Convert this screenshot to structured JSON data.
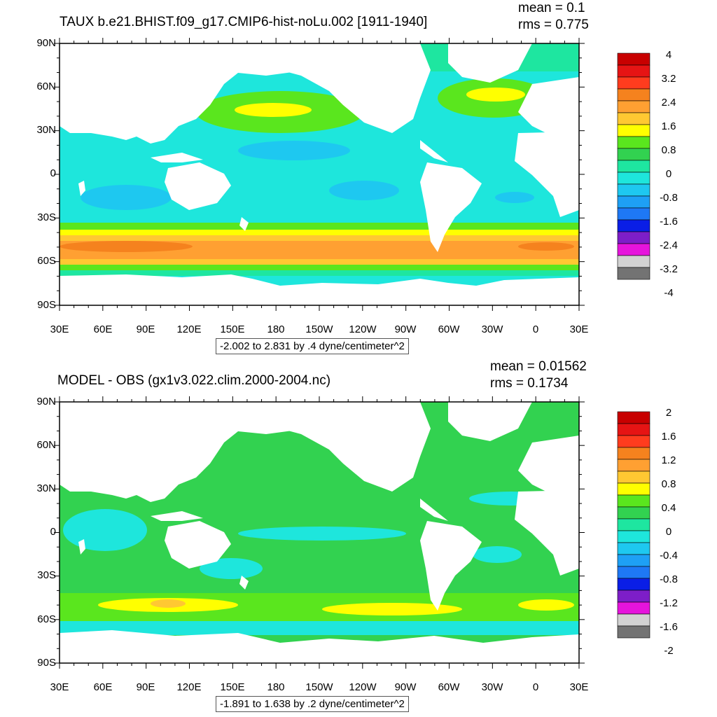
{
  "panels": [
    {
      "title": "TAUX b.e21.BHIST.f09_g17.CMIP6-hist-noLu.002 [1911-1940]",
      "mean": "mean = 0.1",
      "rms": "rms = 0.775",
      "info": "-2.002 to 2.831 by .4 dyne/centimeter^2",
      "ylabels": [
        "90N",
        "60N",
        "30N",
        "0",
        "30S",
        "60S",
        "90S"
      ],
      "xlabels": [
        "30E",
        "60E",
        "90E",
        "120E",
        "150E",
        "180",
        "150W",
        "120W",
        "90W",
        "60W",
        "30W",
        "0",
        "30E"
      ],
      "colorbar_labels": [
        "4",
        "3.2",
        "2.4",
        "1.6",
        "0.8",
        "0",
        "-0.8",
        "-1.6",
        "-2.4",
        "-3.2",
        "-4"
      ]
    },
    {
      "title": "MODEL - OBS (gx1v3.022.clim.2000-2004.nc)",
      "mean": "mean = 0.01562",
      "rms": "rms = 0.1734",
      "info": "-1.891 to 1.638 by .2 dyne/centimeter^2",
      "ylabels": [
        "90N",
        "60N",
        "30N",
        "0",
        "30S",
        "60S",
        "90S"
      ],
      "xlabels": [
        "30E",
        "60E",
        "90E",
        "120E",
        "150E",
        "180",
        "150W",
        "120W",
        "90W",
        "60W",
        "30W",
        "0",
        "30E"
      ],
      "colorbar_labels": [
        "2",
        "1.6",
        "1.2",
        "0.8",
        "0.4",
        "0",
        "-0.4",
        "-0.8",
        "-1.2",
        "-1.6",
        "-2"
      ]
    }
  ],
  "colorbar_colors": [
    "#c80000",
    "#e61414",
    "#ff3c1e",
    "#f5821e",
    "#ffa032",
    "#ffc832",
    "#ffff00",
    "#5ae61e",
    "#32d250",
    "#1ee6a0",
    "#1ee6dc",
    "#1ec8f0",
    "#1ea0f5",
    "#1e78f5",
    "#0a1ee6",
    "#7d1ec8",
    "#e614dc",
    "#d2d2d2",
    "#737373"
  ],
  "chart_data": [
    {
      "type": "heatmap",
      "title": "TAUX b.e21.BHIST.f09_g17.CMIP6-hist-noLu.002 [1911-1940]",
      "units": "dyne/centimeter^2",
      "mean": 0.1,
      "rms": 0.775,
      "data_min": -2.002,
      "data_max": 2.831,
      "contour_interval": 0.4,
      "colorbar_range": [
        -4,
        4
      ],
      "xlim": [
        "30E",
        "30E"
      ],
      "ylim": [
        "90S",
        "90N"
      ]
    },
    {
      "type": "heatmap",
      "title": "MODEL - OBS (gx1v3.022.clim.2000-2004.nc)",
      "units": "dyne/centimeter^2",
      "mean": 0.01562,
      "rms": 0.1734,
      "data_min": -1.891,
      "data_max": 1.638,
      "contour_interval": 0.2,
      "colorbar_range": [
        -2,
        2
      ],
      "xlim": [
        "30E",
        "30E"
      ],
      "ylim": [
        "90S",
        "90N"
      ]
    }
  ]
}
